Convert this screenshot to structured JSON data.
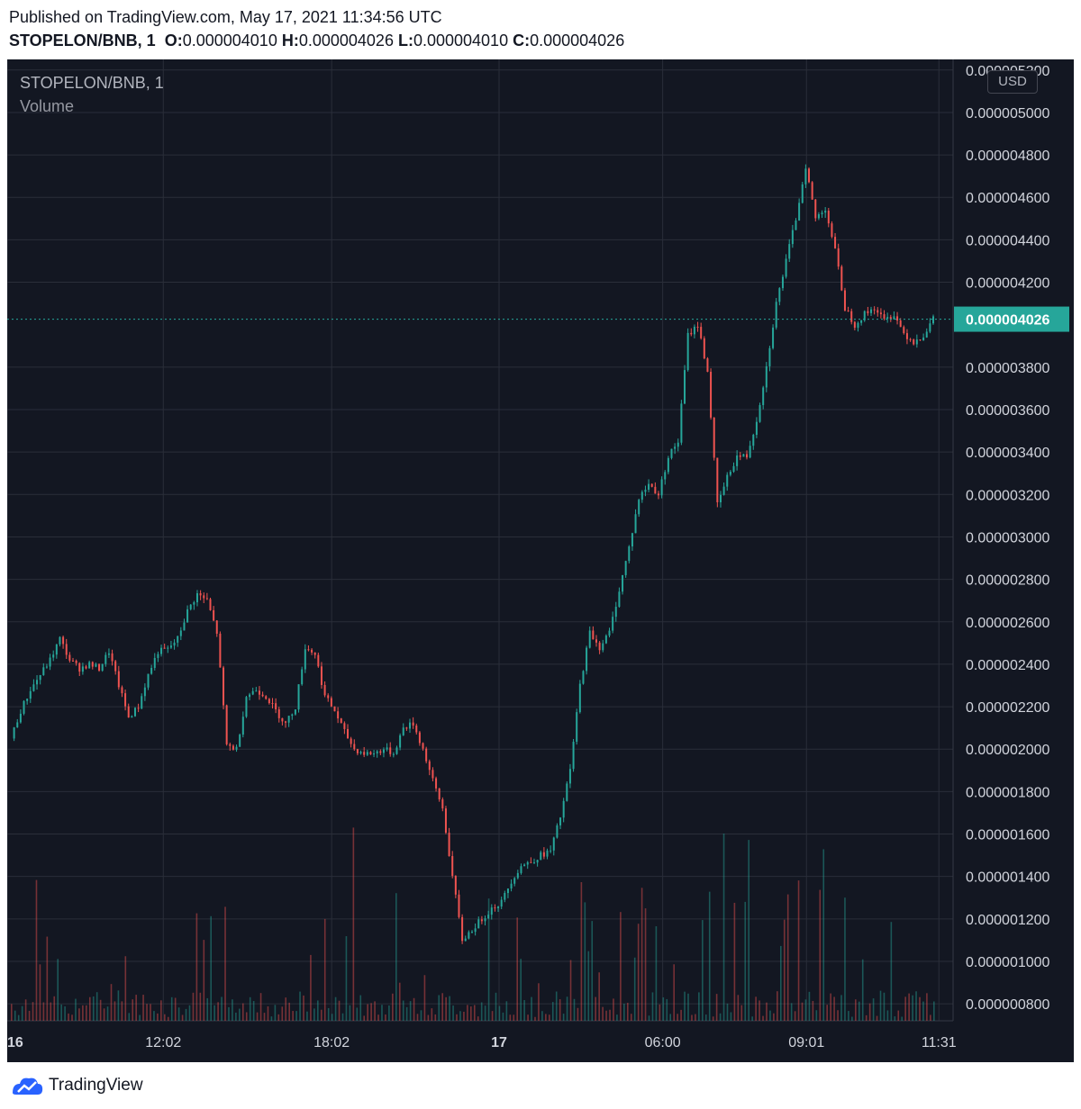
{
  "header": {
    "published": "Published on TradingView.com, May 17, 2021 11:34:56 UTC",
    "symbol": "STOPELON/BNB, 1",
    "open_label": "O:",
    "open": "0.000004010",
    "high_label": "H:",
    "high": "0.000004026",
    "low_label": "L:",
    "low": "0.000004010",
    "close_label": "C:",
    "close": "0.000004026"
  },
  "legend": {
    "symbol": "STOPELON/BNB, 1",
    "volume": "Volume"
  },
  "currency_button": "USD",
  "last_price_label": "0.000004026",
  "footer": {
    "brand": "TradingView"
  },
  "colors": {
    "background": "#131722",
    "up": "#26a69a",
    "down": "#ef5350",
    "grid": "#2a2e39",
    "axis_text": "#d1d4dc",
    "price_tag": "#26a69a"
  },
  "chart_data": {
    "type": "candlestick",
    "title": "STOPELON/BNB, 1",
    "currency": "USD",
    "ylim": [
      7.2e-07,
      5.25e-06
    ],
    "y_ticks": [
      "0.000005200",
      "0.000005000",
      "0.000004800",
      "0.000004600",
      "0.000004400",
      "0.000004200",
      "0.000003800",
      "0.000003600",
      "0.000003400",
      "0.000003200",
      "0.000003000",
      "0.000002800",
      "0.000002600",
      "0.000002400",
      "0.000002200",
      "0.000002000",
      "0.000001800",
      "0.000001600",
      "0.000001400",
      "0.000001200",
      "0.000001000",
      "0.000000800"
    ],
    "x_ticks": [
      "16",
      "12:02",
      "18:02",
      "17",
      "06:00",
      "09:01",
      "11:31"
    ],
    "last_price": 4.026e-06,
    "price_path": [
      [
        0,
        2.05
      ],
      [
        1,
        2.18
      ],
      [
        2,
        2.28
      ],
      [
        3,
        2.35
      ],
      [
        4,
        2.42
      ],
      [
        5,
        2.52
      ],
      [
        6,
        2.42
      ],
      [
        7,
        2.38
      ],
      [
        8,
        2.4
      ],
      [
        9,
        2.38
      ],
      [
        10,
        2.46
      ],
      [
        11,
        2.3
      ],
      [
        12,
        2.15
      ],
      [
        13,
        2.2
      ],
      [
        14,
        2.35
      ],
      [
        15,
        2.46
      ],
      [
        16,
        2.47
      ],
      [
        17,
        2.52
      ],
      [
        18,
        2.65
      ],
      [
        19,
        2.73
      ],
      [
        20,
        2.7
      ],
      [
        21,
        2.55
      ],
      [
        22,
        2.02
      ],
      [
        23,
        2.0
      ],
      [
        24,
        2.25
      ],
      [
        25,
        2.28
      ],
      [
        26,
        2.25
      ],
      [
        27,
        2.18
      ],
      [
        28,
        2.12
      ],
      [
        29,
        2.2
      ],
      [
        30,
        2.48
      ],
      [
        31,
        2.45
      ],
      [
        32,
        2.25
      ],
      [
        33,
        2.18
      ],
      [
        34,
        2.08
      ],
      [
        35,
        2.0
      ],
      [
        36,
        1.98
      ],
      [
        37,
        1.98
      ],
      [
        38,
        2.0
      ],
      [
        39,
        1.98
      ],
      [
        40,
        2.1
      ],
      [
        41,
        2.12
      ],
      [
        42,
        2.0
      ],
      [
        43,
        1.85
      ],
      [
        44,
        1.72
      ],
      [
        45,
        1.4
      ],
      [
        46,
        1.1
      ],
      [
        47,
        1.15
      ],
      [
        48,
        1.2
      ],
      [
        49,
        1.25
      ],
      [
        50,
        1.28
      ],
      [
        51,
        1.38
      ],
      [
        52,
        1.45
      ],
      [
        53,
        1.47
      ],
      [
        54,
        1.5
      ],
      [
        55,
        1.52
      ],
      [
        56,
        1.68
      ],
      [
        57,
        1.9
      ],
      [
        58,
        2.3
      ],
      [
        59,
        2.55
      ],
      [
        60,
        2.48
      ],
      [
        61,
        2.55
      ],
      [
        62,
        2.75
      ],
      [
        63,
        2.95
      ],
      [
        64,
        3.18
      ],
      [
        65,
        3.25
      ],
      [
        66,
        3.2
      ],
      [
        67,
        3.38
      ],
      [
        68,
        3.45
      ],
      [
        69,
        3.95
      ],
      [
        70,
        4.0
      ],
      [
        71,
        3.78
      ],
      [
        72,
        3.15
      ],
      [
        73,
        3.28
      ],
      [
        74,
        3.38
      ],
      [
        75,
        3.38
      ],
      [
        76,
        3.55
      ],
      [
        77,
        3.8
      ],
      [
        78,
        4.1
      ],
      [
        79,
        4.3
      ],
      [
        80,
        4.5
      ],
      [
        81,
        4.75
      ],
      [
        82,
        4.5
      ],
      [
        83,
        4.55
      ],
      [
        84,
        4.35
      ],
      [
        85,
        4.08
      ],
      [
        86,
        4.0
      ],
      [
        87,
        4.05
      ],
      [
        88,
        4.08
      ],
      [
        89,
        4.02
      ],
      [
        90,
        4.05
      ],
      [
        91,
        3.96
      ],
      [
        92,
        3.92
      ],
      [
        93,
        3.95
      ],
      [
        94,
        4.026
      ]
    ]
  }
}
